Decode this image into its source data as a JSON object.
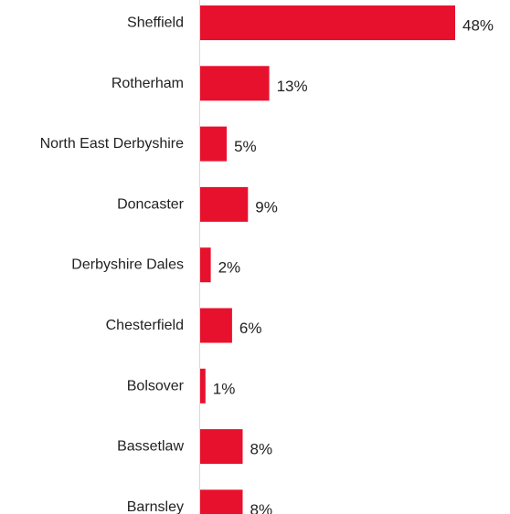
{
  "chart_data": {
    "type": "bar",
    "orientation": "horizontal",
    "categories": [
      "Sheffield",
      "Rotherham",
      "North East Derbyshire",
      "Doncaster",
      "Derbyshire Dales",
      "Chesterfield",
      "Bolsover",
      "Bassetlaw",
      "Barnsley"
    ],
    "values": [
      48,
      13,
      5,
      9,
      2,
      6,
      1,
      8,
      8
    ],
    "value_labels": [
      "48%",
      "13%",
      "5%",
      "9%",
      "2%",
      "6%",
      "1%",
      "8%",
      "8%"
    ],
    "unit": "%",
    "title": "",
    "xlabel": "",
    "ylabel": "",
    "xlim": [
      0,
      48
    ],
    "grid": false,
    "legend": "none",
    "bar_color": "#e8112d",
    "axis_color": "#d9d9d9",
    "text_color": "#222222"
  }
}
